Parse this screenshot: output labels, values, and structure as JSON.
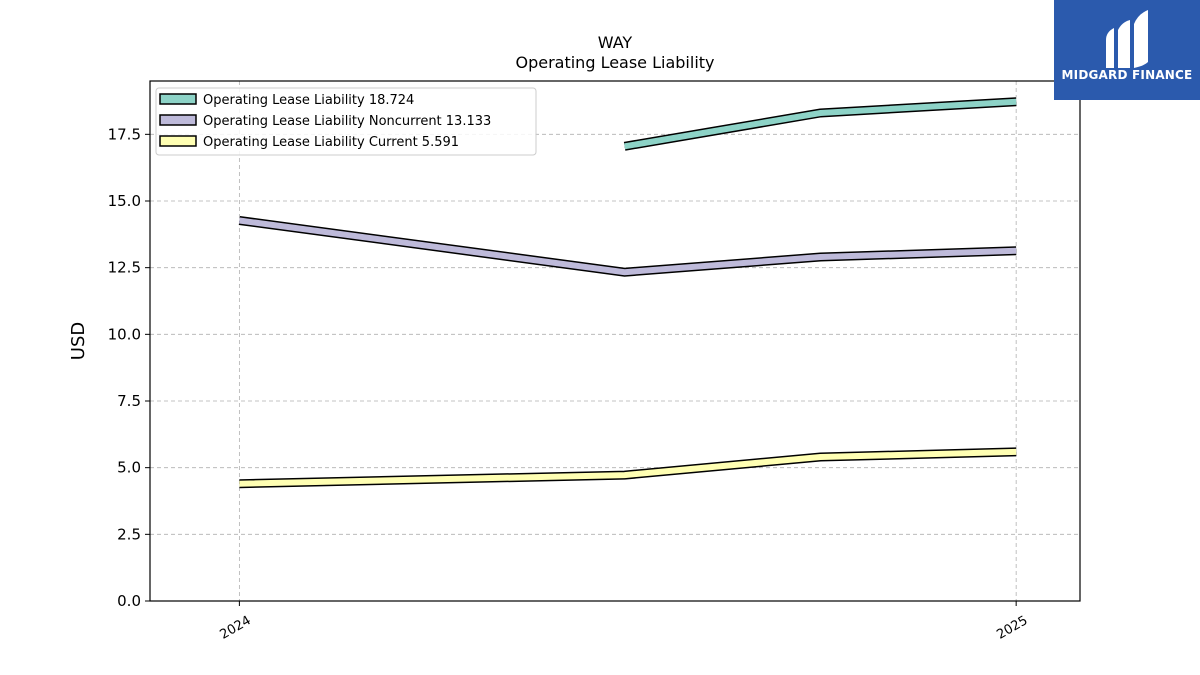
{
  "brand": {
    "name": "MIDGARD FINANCE",
    "bg_color": "#2b5aad"
  },
  "chart_data": {
    "type": "line",
    "title": "WAY",
    "subtitle": "Operating Lease Liability",
    "ylabel": "USD",
    "xlabel": "",
    "ylim": [
      0,
      19.5
    ],
    "yticks": [
      0.0,
      2.5,
      5.0,
      7.5,
      10.0,
      12.5,
      15.0,
      17.5
    ],
    "ytick_labels": [
      "0.0",
      "2.5",
      "5.0",
      "7.5",
      "10.0",
      "12.5",
      "15.0",
      "17.5"
    ],
    "xlim": [
      "2023-11-20",
      "2025-01-30"
    ],
    "xticks": [
      "2024-01-01",
      "2024-12-31"
    ],
    "xtick_labels": [
      "2024",
      "2025"
    ],
    "grid": true,
    "legend_position": "top-left",
    "series": [
      {
        "name": "Operating Lease Liability",
        "legend_label": "Operating Lease Liability  18.724",
        "color": "#8dd3c7",
        "x": [
          "2024-06-30",
          "2024-09-30",
          "2024-12-31"
        ],
        "values": [
          17.05,
          18.3,
          18.724
        ]
      },
      {
        "name": "Operating Lease Liability Noncurrent",
        "legend_label": "Operating Lease Liability Noncurrent  13.133",
        "color": "#bebada",
        "x": [
          "2024-01-01",
          "2024-06-30",
          "2024-09-30",
          "2024-12-31"
        ],
        "values": [
          14.27,
          12.33,
          12.9,
          13.133
        ]
      },
      {
        "name": "Operating Lease Liability Current",
        "legend_label": "Operating Lease Liability Current  5.591",
        "color": "#ffffb3",
        "x": [
          "2024-01-01",
          "2024-06-30",
          "2024-09-30",
          "2024-12-31"
        ],
        "values": [
          4.4,
          4.72,
          5.4,
          5.591
        ]
      }
    ]
  }
}
